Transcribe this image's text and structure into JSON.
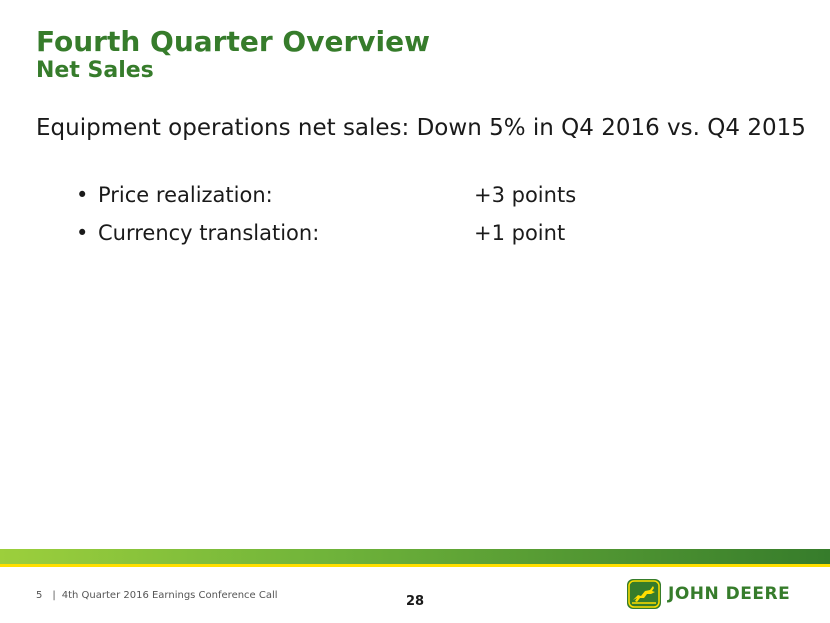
{
  "slide": {
    "title": "Fourth Quarter Overview",
    "subtitle": "Net Sales",
    "headline": "Equipment operations net sales: Down 5% in Q4 2016 vs. Q4 2015",
    "bullets": [
      {
        "label": "Price realization:",
        "value": "+3 points"
      },
      {
        "label": "Currency translation:",
        "value": "+1 point"
      }
    ]
  },
  "footer": {
    "slide_number": "5",
    "separator": "|",
    "event": "4th Quarter 2016 Earnings Conference Call",
    "page_number": "28"
  },
  "logo": {
    "wordmark": "JOHN DEERE",
    "icon": "leaping-deer-icon"
  },
  "colors": {
    "brand_green": "#367C2B",
    "brand_yellow": "#FFDE00",
    "light_green": "#9ccf3c"
  }
}
